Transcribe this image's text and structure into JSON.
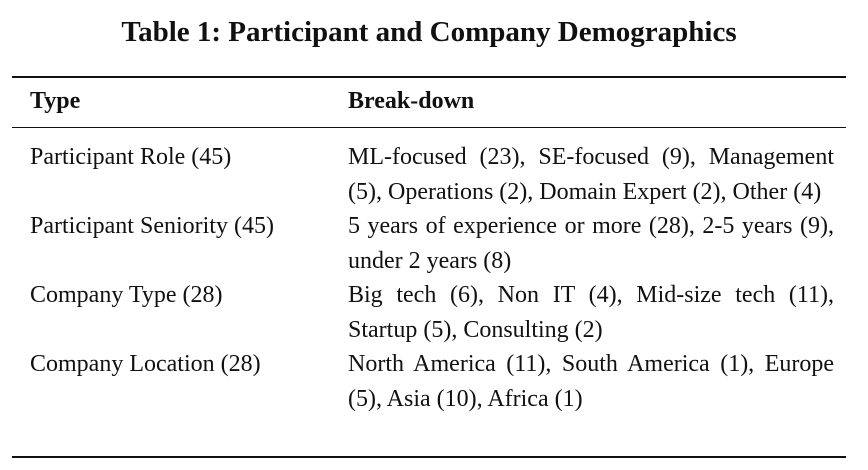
{
  "caption": "Table 1: Participant and Company Demographics",
  "table": {
    "headers": {
      "type": "Type",
      "breakdown": "Break-down"
    },
    "rows": [
      {
        "type": "Participant Role (45)",
        "breakdown": "ML-focused (23), SE-focused (9), Manage­ment (5), Operations (2), Domain Expert (2), Other (4)"
      },
      {
        "type": "Participant Seniority (45)",
        "breakdown": "5 years of experience or more (28), 2-5 years (9), under 2 years (8)"
      },
      {
        "type": "Company Type (28)",
        "breakdown": "Big tech (6), Non IT (4), Mid-size tech (11), Startup (5), Consulting (2)"
      },
      {
        "type": "Company Location (28)",
        "breakdown": "North America (11), South America (1), Eu­rope (5), Asia (10), Africa (1)"
      }
    ]
  }
}
